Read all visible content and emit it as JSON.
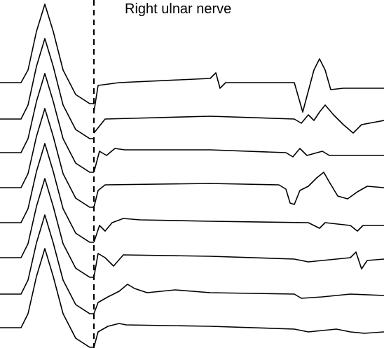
{
  "chart_data": {
    "type": "line",
    "title": "Right ulnar nerve",
    "xlabel": "",
    "ylabel": "",
    "description_of_axes": "none printed",
    "trace_count": 8,
    "stimulus_marker": "dashed vertical line",
    "colors": {
      "trace": "#000000",
      "background": "#ffffff"
    },
    "series": [
      {
        "baseline": 118,
        "stim": [
          [
            0,
            118
          ],
          [
            30,
            118
          ],
          [
            40,
            100
          ],
          [
            52,
            45
          ],
          [
            64,
            6
          ],
          [
            76,
            45
          ],
          [
            90,
            100
          ],
          [
            108,
            135
          ],
          [
            128,
            148
          ],
          [
            134,
            148
          ]
        ],
        "post": [
          [
            134,
            160
          ],
          [
            140,
            122
          ],
          [
            170,
            118
          ],
          [
            300,
            112
          ],
          [
            308,
            104
          ],
          [
            314,
            126
          ],
          [
            322,
            118
          ],
          [
            420,
            118
          ],
          [
            424,
            132
          ],
          [
            432,
            160
          ],
          [
            440,
            130
          ],
          [
            448,
            100
          ],
          [
            456,
            84
          ],
          [
            464,
            100
          ],
          [
            472,
            128
          ],
          [
            490,
            126
          ],
          [
            548,
            126
          ]
        ]
      },
      {
        "baseline": 170,
        "stim": [
          [
            0,
            170
          ],
          [
            30,
            170
          ],
          [
            40,
            150
          ],
          [
            52,
            95
          ],
          [
            64,
            55
          ],
          [
            76,
            95
          ],
          [
            90,
            150
          ],
          [
            108,
            185
          ],
          [
            128,
            198
          ],
          [
            134,
            198
          ]
        ],
        "post": [
          [
            134,
            190
          ],
          [
            150,
            170
          ],
          [
            300,
            166
          ],
          [
            420,
            170
          ],
          [
            430,
            176
          ],
          [
            440,
            164
          ],
          [
            448,
            172
          ],
          [
            456,
            160
          ],
          [
            464,
            150
          ],
          [
            476,
            164
          ],
          [
            490,
            178
          ],
          [
            504,
            190
          ],
          [
            516,
            178
          ],
          [
            548,
            172
          ]
        ]
      },
      {
        "baseline": 218,
        "stim": [
          [
            0,
            218
          ],
          [
            30,
            218
          ],
          [
            40,
            198
          ],
          [
            52,
            145
          ],
          [
            64,
            105
          ],
          [
            76,
            145
          ],
          [
            90,
            198
          ],
          [
            108,
            233
          ],
          [
            128,
            246
          ],
          [
            134,
            246
          ]
        ],
        "post": [
          [
            134,
            246
          ],
          [
            142,
            216
          ],
          [
            152,
            222
          ],
          [
            164,
            212
          ],
          [
            178,
            214
          ],
          [
            300,
            214
          ],
          [
            408,
            218
          ],
          [
            418,
            224
          ],
          [
            428,
            212
          ],
          [
            438,
            222
          ],
          [
            460,
            216
          ],
          [
            470,
            222
          ],
          [
            548,
            222
          ]
        ]
      },
      {
        "baseline": 268,
        "stim": [
          [
            0,
            268
          ],
          [
            30,
            268
          ],
          [
            40,
            248
          ],
          [
            52,
            195
          ],
          [
            64,
            155
          ],
          [
            76,
            195
          ],
          [
            90,
            248
          ],
          [
            108,
            283
          ],
          [
            128,
            296
          ],
          [
            134,
            296
          ]
        ],
        "post": [
          [
            134,
            296
          ],
          [
            140,
            272
          ],
          [
            150,
            264
          ],
          [
            300,
            262
          ],
          [
            398,
            264
          ],
          [
            408,
            270
          ],
          [
            414,
            290
          ],
          [
            420,
            292
          ],
          [
            428,
            272
          ],
          [
            440,
            266
          ],
          [
            452,
            254
          ],
          [
            462,
            246
          ],
          [
            470,
            260
          ],
          [
            482,
            280
          ],
          [
            496,
            284
          ],
          [
            510,
            274
          ],
          [
            524,
            266
          ],
          [
            548,
            268
          ]
        ]
      },
      {
        "baseline": 318,
        "stim": [
          [
            0,
            318
          ],
          [
            30,
            318
          ],
          [
            40,
            298
          ],
          [
            52,
            245
          ],
          [
            64,
            205
          ],
          [
            76,
            245
          ],
          [
            90,
            298
          ],
          [
            108,
            333
          ],
          [
            128,
            346
          ],
          [
            134,
            346
          ]
        ],
        "post": [
          [
            134,
            346
          ],
          [
            142,
            322
          ],
          [
            150,
            330
          ],
          [
            160,
            318
          ],
          [
            176,
            312
          ],
          [
            200,
            314
          ],
          [
            300,
            316
          ],
          [
            440,
            318
          ],
          [
            456,
            326
          ],
          [
            464,
            318
          ],
          [
            500,
            322
          ],
          [
            510,
            330
          ],
          [
            518,
            322
          ],
          [
            548,
            322
          ]
        ]
      },
      {
        "baseline": 368,
        "stim": [
          [
            0,
            368
          ],
          [
            30,
            368
          ],
          [
            40,
            348
          ],
          [
            52,
            295
          ],
          [
            64,
            255
          ],
          [
            76,
            295
          ],
          [
            90,
            348
          ],
          [
            108,
            383
          ],
          [
            128,
            396
          ],
          [
            134,
            396
          ]
        ],
        "post": [
          [
            134,
            396
          ],
          [
            140,
            362
          ],
          [
            150,
            368
          ],
          [
            162,
            380
          ],
          [
            176,
            364
          ],
          [
            300,
            366
          ],
          [
            420,
            370
          ],
          [
            440,
            374
          ],
          [
            500,
            368
          ],
          [
            508,
            360
          ],
          [
            516,
            384
          ],
          [
            524,
            372
          ],
          [
            548,
            370
          ]
        ]
      },
      {
        "baseline": 420,
        "stim": [
          [
            0,
            420
          ],
          [
            30,
            420
          ],
          [
            40,
            400
          ],
          [
            52,
            347
          ],
          [
            64,
            307
          ],
          [
            76,
            347
          ],
          [
            90,
            400
          ],
          [
            108,
            435
          ],
          [
            128,
            448
          ],
          [
            134,
            448
          ]
        ],
        "post": [
          [
            134,
            448
          ],
          [
            140,
            432
          ],
          [
            154,
            424
          ],
          [
            170,
            416
          ],
          [
            182,
            406
          ],
          [
            192,
            412
          ],
          [
            210,
            418
          ],
          [
            250,
            414
          ],
          [
            300,
            418
          ],
          [
            420,
            420
          ],
          [
            430,
            426
          ],
          [
            460,
            424
          ],
          [
            500,
            420
          ],
          [
            548,
            422
          ]
        ]
      },
      {
        "baseline": 468,
        "stim": [
          [
            0,
            468
          ],
          [
            30,
            468
          ],
          [
            40,
            448
          ],
          [
            52,
            395
          ],
          [
            64,
            355
          ],
          [
            76,
            395
          ],
          [
            90,
            448
          ],
          [
            108,
            483
          ],
          [
            128,
            496
          ],
          [
            134,
            496
          ]
        ],
        "post": [
          [
            134,
            496
          ],
          [
            140,
            474
          ],
          [
            154,
            466
          ],
          [
            170,
            462
          ],
          [
            180,
            464
          ],
          [
            300,
            466
          ],
          [
            420,
            470
          ],
          [
            440,
            474
          ],
          [
            480,
            470
          ],
          [
            500,
            474
          ],
          [
            520,
            476
          ],
          [
            548,
            474
          ]
        ]
      }
    ]
  }
}
